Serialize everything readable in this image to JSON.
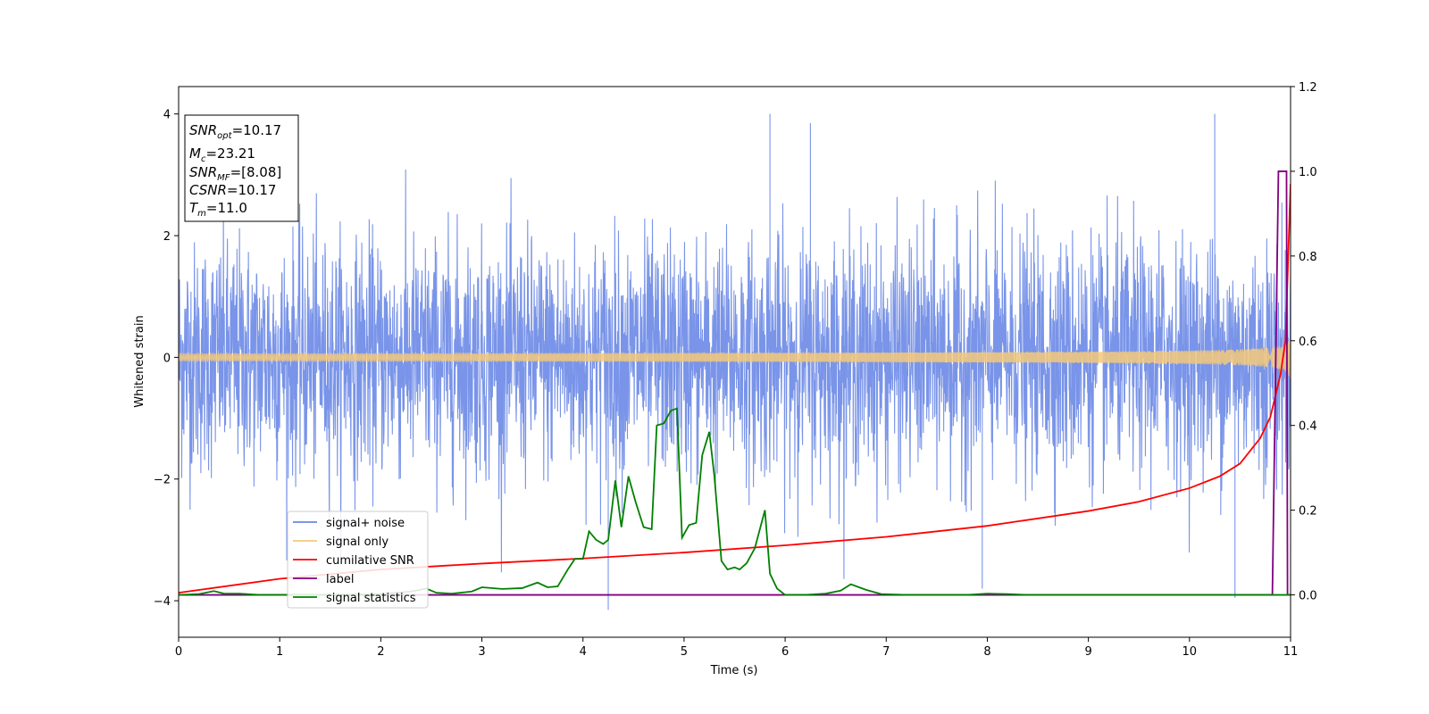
{
  "chart_data": {
    "type": "line",
    "title": "",
    "xlabel": "Time (s)",
    "ylabel": "Whitened strain",
    "y2label": "",
    "xlim": [
      0,
      11
    ],
    "ylim": [
      -4.6,
      4.45
    ],
    "y2lim": [
      -0.1,
      1.2
    ],
    "x_ticks": [
      "0",
      "1",
      "2",
      "3",
      "4",
      "5",
      "6",
      "7",
      "8",
      "9",
      "10",
      "11"
    ],
    "y_ticks": [
      "−4",
      "−2",
      "0",
      "2",
      "4"
    ],
    "y2_ticks": [
      "0.0",
      "0.2",
      "0.4",
      "0.6",
      "0.8",
      "1.0",
      "1.2"
    ],
    "grid": false,
    "legend_position": "lower-left",
    "annotation": {
      "snr_opt": {
        "name": "SNR",
        "sub": "opt",
        "value": "=10.17"
      },
      "mc": {
        "name": "M",
        "sub": "c",
        "value": "=23.21"
      },
      "snr_mf": {
        "name": "SNR",
        "sub": "MF",
        "value": "=[8.08]"
      },
      "csnr": {
        "name": "CSNR",
        "value": "=10.17"
      },
      "tm": {
        "name": "T",
        "sub": "m",
        "value": "=11.0"
      }
    },
    "series": [
      {
        "name": "signal+ noise",
        "axis": "left",
        "color": "#6a88e6",
        "kind": "noise",
        "std": 0.95,
        "typical_range": [
          -2.2,
          2.3
        ],
        "extremes": [
          {
            "x": 5.85,
            "y": 4.0
          },
          {
            "x": 10.25,
            "y": 4.0
          },
          {
            "x": 6.25,
            "y": 3.85
          },
          {
            "x": 4.25,
            "y": -4.15
          },
          {
            "x": 10.45,
            "y": -3.95
          },
          {
            "x": 7.95,
            "y": -3.8
          }
        ]
      },
      {
        "name": "signal only",
        "axis": "left",
        "color": "#f5c97a",
        "kind": "chirp",
        "merger_time": 11.0,
        "peak_amplitude": 1.75
      },
      {
        "name": "cumilative SNR",
        "axis": "right",
        "color": "#ff0000",
        "points": [
          [
            0,
            0.005
          ],
          [
            1,
            0.038
          ],
          [
            2,
            0.06
          ],
          [
            3,
            0.074
          ],
          [
            4,
            0.086
          ],
          [
            5,
            0.1
          ],
          [
            6,
            0.117
          ],
          [
            7,
            0.137
          ],
          [
            8,
            0.163
          ],
          [
            9,
            0.198
          ],
          [
            9.5,
            0.22
          ],
          [
            10,
            0.252
          ],
          [
            10.3,
            0.28
          ],
          [
            10.5,
            0.31
          ],
          [
            10.7,
            0.37
          ],
          [
            10.8,
            0.42
          ],
          [
            10.9,
            0.52
          ],
          [
            10.95,
            0.6
          ],
          [
            11.0,
            0.97
          ]
        ]
      },
      {
        "name": "label",
        "axis": "right",
        "color": "#800080",
        "points": [
          [
            0,
            0.0
          ],
          [
            10.82,
            0.0
          ],
          [
            10.88,
            1.0
          ],
          [
            10.96,
            1.0
          ],
          [
            10.97,
            0.0
          ],
          [
            11.0,
            0.0
          ]
        ]
      },
      {
        "name": "signal statistics",
        "axis": "right",
        "color": "#008000",
        "points": [
          [
            0,
            0.0
          ],
          [
            0.2,
            0.002
          ],
          [
            0.35,
            0.009
          ],
          [
            0.45,
            0.003
          ],
          [
            0.6,
            0.003
          ],
          [
            0.8,
            0.0
          ],
          [
            1.0,
            0.0
          ],
          [
            1.5,
            0.0
          ],
          [
            2.0,
            0.002
          ],
          [
            2.3,
            0.008
          ],
          [
            2.45,
            0.015
          ],
          [
            2.55,
            0.005
          ],
          [
            2.7,
            0.003
          ],
          [
            2.9,
            0.008
          ],
          [
            3.0,
            0.018
          ],
          [
            3.2,
            0.014
          ],
          [
            3.4,
            0.016
          ],
          [
            3.55,
            0.029
          ],
          [
            3.65,
            0.018
          ],
          [
            3.75,
            0.02
          ],
          [
            3.85,
            0.06
          ],
          [
            3.92,
            0.085
          ],
          [
            4.0,
            0.085
          ],
          [
            4.06,
            0.15
          ],
          [
            4.13,
            0.13
          ],
          [
            4.2,
            0.12
          ],
          [
            4.25,
            0.13
          ],
          [
            4.32,
            0.27
          ],
          [
            4.38,
            0.16
          ],
          [
            4.45,
            0.28
          ],
          [
            4.52,
            0.22
          ],
          [
            4.6,
            0.16
          ],
          [
            4.68,
            0.155
          ],
          [
            4.73,
            0.4
          ],
          [
            4.8,
            0.405
          ],
          [
            4.87,
            0.435
          ],
          [
            4.93,
            0.44
          ],
          [
            4.98,
            0.135
          ],
          [
            5.05,
            0.165
          ],
          [
            5.12,
            0.17
          ],
          [
            5.18,
            0.33
          ],
          [
            5.25,
            0.385
          ],
          [
            5.3,
            0.28
          ],
          [
            5.37,
            0.08
          ],
          [
            5.43,
            0.06
          ],
          [
            5.5,
            0.065
          ],
          [
            5.55,
            0.06
          ],
          [
            5.62,
            0.075
          ],
          [
            5.7,
            0.11
          ],
          [
            5.8,
            0.2
          ],
          [
            5.85,
            0.05
          ],
          [
            5.92,
            0.015
          ],
          [
            6.0,
            0.0
          ],
          [
            6.2,
            0.0
          ],
          [
            6.4,
            0.003
          ],
          [
            6.55,
            0.01
          ],
          [
            6.65,
            0.025
          ],
          [
            6.8,
            0.012
          ],
          [
            6.95,
            0.002
          ],
          [
            7.2,
            0.0
          ],
          [
            7.5,
            0.0
          ],
          [
            7.8,
            0.0
          ],
          [
            8.0,
            0.003
          ],
          [
            8.2,
            0.002
          ],
          [
            8.4,
            0.0
          ],
          [
            9.0,
            0.0
          ],
          [
            10.0,
            0.0
          ],
          [
            11.0,
            0.0
          ]
        ]
      }
    ]
  }
}
